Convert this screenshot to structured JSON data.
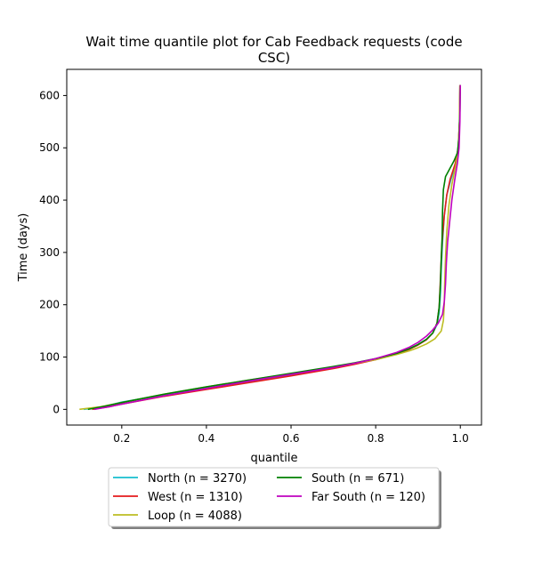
{
  "chart_data": {
    "type": "line",
    "title_lines": [
      "Wait time quantile plot for Cab Feedback  requests (code",
      "CSC)"
    ],
    "xlabel": "quantile",
    "ylabel": "Time (days)",
    "xlim": [
      0.07,
      1.05
    ],
    "ylim": [
      -30,
      650
    ],
    "xticks": [
      0.2,
      0.4,
      0.6,
      0.8,
      1.0
    ],
    "xtick_labels": [
      "0.2",
      "0.4",
      "0.6",
      "0.8",
      "1.0"
    ],
    "yticks": [
      0,
      100,
      200,
      300,
      400,
      500,
      600
    ],
    "ytick_labels": [
      "0",
      "100",
      "200",
      "300",
      "400",
      "500",
      "600"
    ],
    "grid": false,
    "legend_position": "below plot, two columns",
    "series": [
      {
        "name": "North (n = 3270)",
        "color": "#17becf",
        "points": [
          [
            0.11,
            0
          ],
          [
            0.15,
            4
          ],
          [
            0.2,
            14
          ],
          [
            0.3,
            28
          ],
          [
            0.4,
            41
          ],
          [
            0.5,
            53
          ],
          [
            0.6,
            66
          ],
          [
            0.7,
            80
          ],
          [
            0.75,
            87
          ],
          [
            0.8,
            96
          ],
          [
            0.85,
            107
          ],
          [
            0.88,
            116
          ],
          [
            0.9,
            124
          ],
          [
            0.92,
            134
          ],
          [
            0.935,
            146
          ],
          [
            0.945,
            162
          ],
          [
            0.95,
            185
          ],
          [
            0.953,
            220
          ],
          [
            0.955,
            270
          ],
          [
            0.958,
            320
          ],
          [
            0.962,
            370
          ],
          [
            0.968,
            410
          ],
          [
            0.978,
            440
          ],
          [
            0.99,
            470
          ],
          [
            0.995,
            500
          ],
          [
            0.998,
            550
          ],
          [
            0.999,
            620
          ]
        ]
      },
      {
        "name": "West (n = 1310)",
        "color": "#e41a1c",
        "points": [
          [
            0.13,
            0
          ],
          [
            0.17,
            5
          ],
          [
            0.2,
            10
          ],
          [
            0.3,
            25
          ],
          [
            0.4,
            38
          ],
          [
            0.5,
            51
          ],
          [
            0.6,
            64
          ],
          [
            0.7,
            78
          ],
          [
            0.75,
            86
          ],
          [
            0.8,
            95
          ],
          [
            0.85,
            106
          ],
          [
            0.88,
            115
          ],
          [
            0.9,
            123
          ],
          [
            0.92,
            133
          ],
          [
            0.935,
            146
          ],
          [
            0.945,
            165
          ],
          [
            0.95,
            195
          ],
          [
            0.952,
            230
          ],
          [
            0.954,
            270
          ],
          [
            0.957,
            320
          ],
          [
            0.962,
            370
          ],
          [
            0.968,
            410
          ],
          [
            0.976,
            440
          ],
          [
            0.988,
            470
          ],
          [
            0.995,
            500
          ],
          [
            0.998,
            550
          ],
          [
            0.999,
            620
          ]
        ]
      },
      {
        "name": "Loop (n = 4088)",
        "color": "#bcbd22",
        "points": [
          [
            0.1,
            0
          ],
          [
            0.15,
            5
          ],
          [
            0.2,
            13
          ],
          [
            0.3,
            29
          ],
          [
            0.4,
            43
          ],
          [
            0.5,
            56
          ],
          [
            0.6,
            68
          ],
          [
            0.7,
            81
          ],
          [
            0.75,
            88
          ],
          [
            0.8,
            95
          ],
          [
            0.85,
            105
          ],
          [
            0.88,
            112
          ],
          [
            0.9,
            118
          ],
          [
            0.92,
            125
          ],
          [
            0.94,
            135
          ],
          [
            0.955,
            150
          ],
          [
            0.96,
            170
          ],
          [
            0.962,
            200
          ],
          [
            0.963,
            240
          ],
          [
            0.965,
            290
          ],
          [
            0.968,
            340
          ],
          [
            0.973,
            390
          ],
          [
            0.98,
            430
          ],
          [
            0.99,
            470
          ],
          [
            0.995,
            500
          ],
          [
            0.998,
            550
          ],
          [
            0.999,
            620
          ]
        ]
      },
      {
        "name": "South (n = 671)",
        "color": "#008000",
        "points": [
          [
            0.12,
            0
          ],
          [
            0.16,
            6
          ],
          [
            0.2,
            13
          ],
          [
            0.3,
            29
          ],
          [
            0.4,
            43
          ],
          [
            0.5,
            56
          ],
          [
            0.6,
            69
          ],
          [
            0.7,
            82
          ],
          [
            0.75,
            89
          ],
          [
            0.8,
            97
          ],
          [
            0.85,
            107
          ],
          [
            0.88,
            116
          ],
          [
            0.9,
            124
          ],
          [
            0.92,
            134
          ],
          [
            0.935,
            146
          ],
          [
            0.945,
            165
          ],
          [
            0.95,
            195
          ],
          [
            0.953,
            240
          ],
          [
            0.955,
            290
          ],
          [
            0.957,
            330
          ],
          [
            0.958,
            380
          ],
          [
            0.96,
            420
          ],
          [
            0.965,
            445
          ],
          [
            0.975,
            460
          ],
          [
            0.985,
            475
          ],
          [
            0.993,
            490
          ],
          [
            0.997,
            520
          ],
          [
            0.999,
            570
          ],
          [
            1.0,
            620
          ]
        ]
      },
      {
        "name": "Far South (n = 120)",
        "color": "#bf00bf",
        "points": [
          [
            0.135,
            0
          ],
          [
            0.17,
            5
          ],
          [
            0.2,
            10
          ],
          [
            0.3,
            26
          ],
          [
            0.4,
            40
          ],
          [
            0.5,
            54
          ],
          [
            0.6,
            67
          ],
          [
            0.7,
            80
          ],
          [
            0.75,
            88
          ],
          [
            0.8,
            97
          ],
          [
            0.85,
            109
          ],
          [
            0.88,
            119
          ],
          [
            0.9,
            128
          ],
          [
            0.92,
            140
          ],
          [
            0.935,
            152
          ],
          [
            0.948,
            165
          ],
          [
            0.958,
            182
          ],
          [
            0.962,
            205
          ],
          [
            0.965,
            240
          ],
          [
            0.967,
            280
          ],
          [
            0.97,
            320
          ],
          [
            0.975,
            360
          ],
          [
            0.98,
            400
          ],
          [
            0.987,
            440
          ],
          [
            0.993,
            470
          ],
          [
            0.997,
            500
          ],
          [
            0.999,
            550
          ],
          [
            1.0,
            620
          ]
        ]
      }
    ]
  }
}
